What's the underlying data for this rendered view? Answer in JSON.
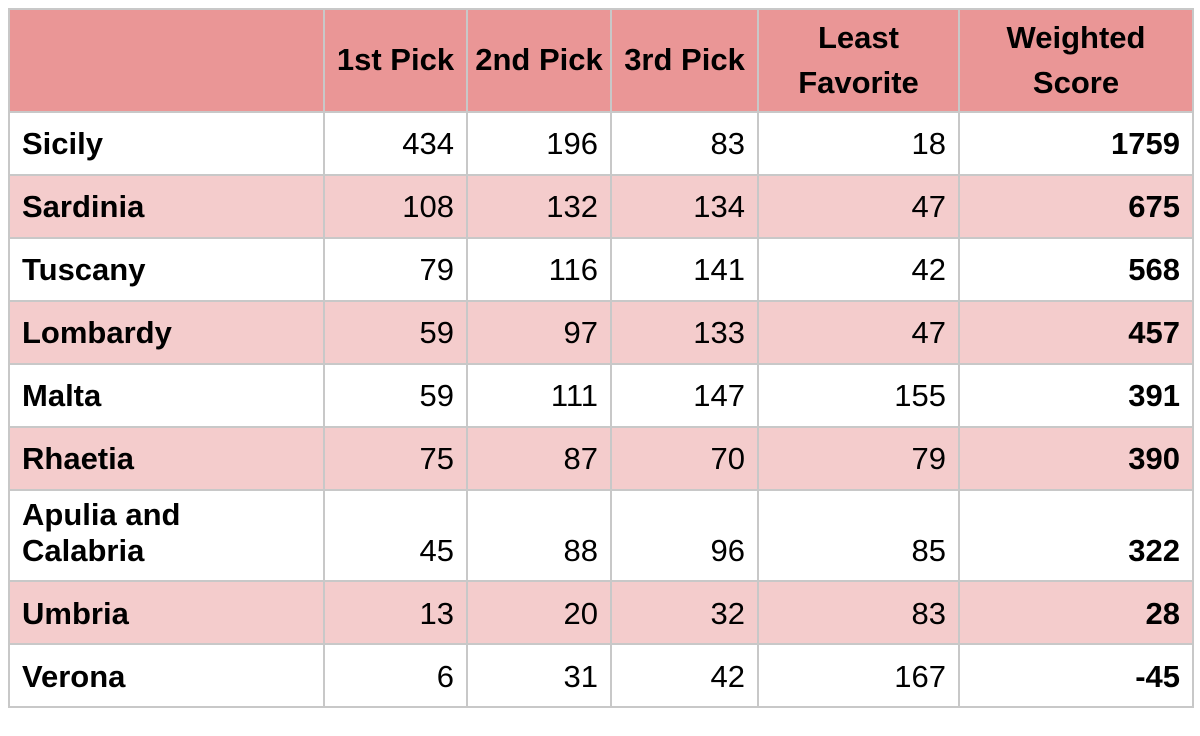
{
  "table": {
    "header": [
      "",
      "1st Pick",
      "2nd Pick",
      "3rd Pick",
      "Least Favorite",
      "Weighted Score"
    ]
  },
  "chart_data": {
    "type": "table",
    "title": "",
    "columns": [
      "1st Pick",
      "2nd Pick",
      "3rd Pick",
      "Least Favorite",
      "Weighted Score"
    ],
    "rows": [
      {
        "label": "Sicily",
        "values": [
          434,
          196,
          83,
          18,
          1759
        ]
      },
      {
        "label": "Sardinia",
        "values": [
          108,
          132,
          134,
          47,
          675
        ]
      },
      {
        "label": "Tuscany",
        "values": [
          79,
          116,
          141,
          42,
          568
        ]
      },
      {
        "label": "Lombardy",
        "values": [
          59,
          97,
          133,
          47,
          457
        ]
      },
      {
        "label": "Malta",
        "values": [
          59,
          111,
          147,
          155,
          391
        ]
      },
      {
        "label": "Rhaetia",
        "values": [
          75,
          87,
          70,
          79,
          390
        ]
      },
      {
        "label": "Apulia and Calabria",
        "values": [
          45,
          88,
          96,
          85,
          322
        ]
      },
      {
        "label": "Umbria",
        "values": [
          13,
          20,
          32,
          83,
          28
        ]
      },
      {
        "label": "Verona",
        "values": [
          6,
          31,
          42,
          167,
          -45
        ]
      }
    ],
    "layout_hints": {
      "row_striping": [
        "white",
        "pink"
      ],
      "bold_columns": [
        "label",
        "Weighted Score"
      ],
      "grid": true
    },
    "colors": {
      "header_background": "#ea9696",
      "alt_row_background": "#f4cccc",
      "row_background": "#ffffff",
      "border": "#c8c8c8",
      "text": "#000000"
    }
  }
}
